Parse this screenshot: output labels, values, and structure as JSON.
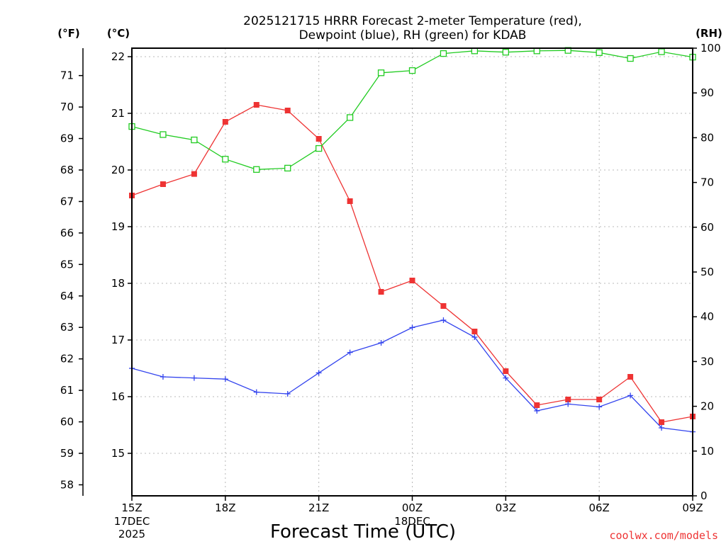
{
  "title_line1": "2025121715 HRRR Forecast 2-meter Temperature (red),",
  "title_line2": "Dewpoint (blue), RH (green) for KDAB",
  "unit_f": "(°F)",
  "unit_c": "(°C)",
  "unit_rh": "(RH)",
  "x_title": "Forecast Time (UTC)",
  "credit": "coolwx.com/models",
  "x_ticks": [
    {
      "h": 0,
      "label": "15Z",
      "sub1": "17DEC",
      "sub2": "2025"
    },
    {
      "h": 3,
      "label": "18Z",
      "sub1": "",
      "sub2": ""
    },
    {
      "h": 6,
      "label": "21Z",
      "sub1": "",
      "sub2": ""
    },
    {
      "h": 9,
      "label": "00Z",
      "sub1": "18DEC",
      "sub2": ""
    },
    {
      "h": 12,
      "label": "03Z",
      "sub1": "",
      "sub2": ""
    },
    {
      "h": 15,
      "label": "06Z",
      "sub1": "",
      "sub2": ""
    },
    {
      "h": 18,
      "label": "09Z",
      "sub1": "",
      "sub2": ""
    }
  ],
  "c_ticks": [
    "15",
    "16",
    "17",
    "18",
    "19",
    "20",
    "21",
    "22"
  ],
  "f_ticks": [
    "58",
    "59",
    "60",
    "61",
    "62",
    "63",
    "64",
    "65",
    "66",
    "67",
    "68",
    "69",
    "70",
    "71"
  ],
  "rh_ticks": [
    "0",
    "10",
    "20",
    "30",
    "40",
    "50",
    "60",
    "70",
    "80",
    "90",
    "100"
  ],
  "colors": {
    "temp": "#ee3333",
    "dewpoint": "#3344ee",
    "rh": "#22cc22",
    "credit": "#ee3333",
    "grid": "#b8b8b8"
  },
  "chart_data": {
    "type": "line",
    "title": "2025121715 HRRR Forecast 2-meter Temperature (red), Dewpoint (blue), RH (green) for KDAB",
    "xlabel": "Forecast Time (UTC)",
    "ylabel_left": "(°C) / (°F)",
    "ylabel_right": "(RH)",
    "x": [
      0,
      1,
      2,
      3,
      4,
      5,
      6,
      7,
      8,
      9,
      10,
      11,
      12,
      13,
      14,
      15,
      16,
      17,
      18
    ],
    "ylim_c": [
      14.25,
      22.15
    ],
    "ylim_rh": [
      0,
      100
    ],
    "grid": true,
    "series": [
      {
        "name": "Temperature (red)",
        "axis": "c",
        "marker": "filled-square",
        "values": [
          19.55,
          19.75,
          19.93,
          20.85,
          21.15,
          21.05,
          20.55,
          19.45,
          17.85,
          18.05,
          17.6,
          17.15,
          16.45,
          15.85,
          15.95,
          15.95,
          16.35,
          15.55,
          15.65
        ]
      },
      {
        "name": "Dewpoint (blue)",
        "axis": "c",
        "marker": "plus",
        "values": [
          16.5,
          16.35,
          16.33,
          16.31,
          16.08,
          16.05,
          16.42,
          16.78,
          16.95,
          17.22,
          17.35,
          17.05,
          16.33,
          15.75,
          15.87,
          15.82,
          16.02,
          15.45,
          15.38
        ]
      },
      {
        "name": "RH (green)",
        "axis": "rh",
        "marker": "open-square",
        "values": [
          82.5,
          80.7,
          79.5,
          75.2,
          72.9,
          73.2,
          77.6,
          84.5,
          94.5,
          95.0,
          98.8,
          99.4,
          99.1,
          99.4,
          99.5,
          99.0,
          97.7,
          99.2,
          98.0
        ]
      }
    ]
  }
}
